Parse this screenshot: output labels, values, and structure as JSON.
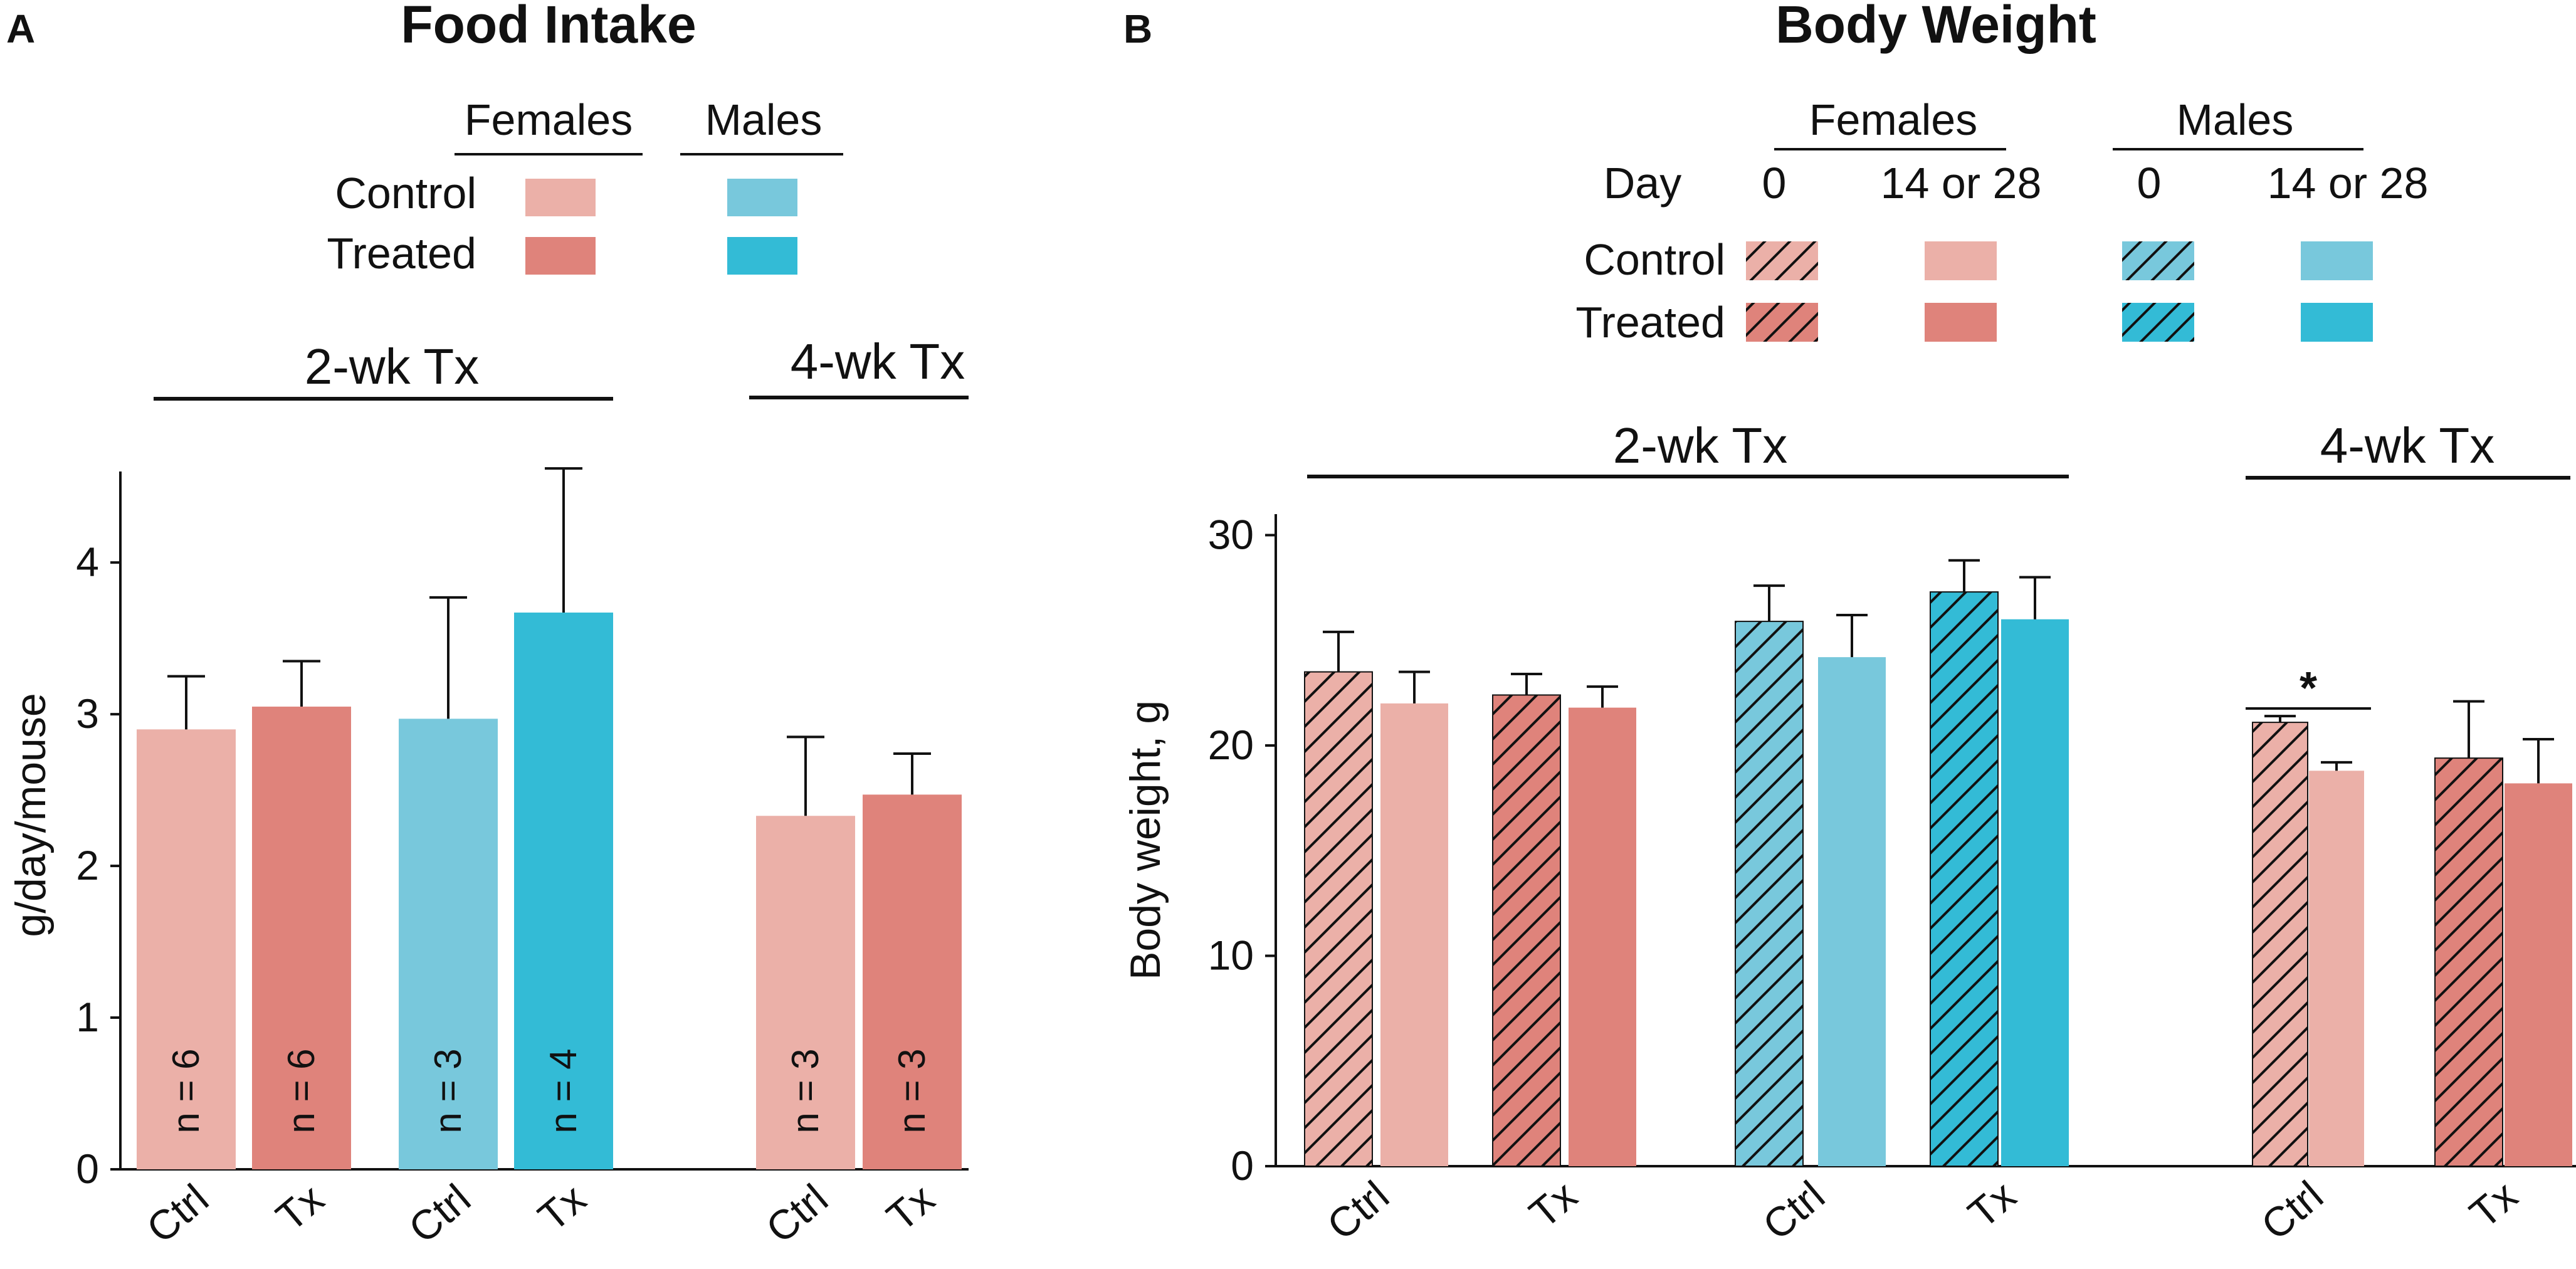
{
  "colors": {
    "female_control": "#ebb0a8",
    "female_treated": "#df837b",
    "male_control": "#78c8dc",
    "male_treated": "#33bbd6",
    "ink": "#111111"
  },
  "panelA": {
    "letter": "A",
    "legend": {
      "females": "Females",
      "males": "Males",
      "control": "Control",
      "treated": "Treated"
    }
  },
  "panelB": {
    "letter": "B",
    "legend": {
      "females": "Females",
      "males": "Males",
      "day_label": "Day",
      "day0": "0",
      "day_end": "14 or 28",
      "control": "Control",
      "treated": "Treated"
    }
  },
  "chart_data": [
    {
      "type": "bar",
      "panel": "A",
      "title": "Food Intake",
      "xlabel": "",
      "ylabel": "g/day/mouse",
      "ylim": [
        0,
        4.6
      ],
      "yticks": [
        "0",
        "1",
        "2",
        "3",
        "4"
      ],
      "group_labels": [
        "2-wk Tx",
        "4-wk Tx"
      ],
      "categories": [
        "Ctrl",
        "Tx",
        "Ctrl",
        "Tx",
        "Ctrl",
        "Tx"
      ],
      "bars": [
        {
          "label": "Ctrl",
          "sex": "female",
          "treatment": "control",
          "value": 2.9,
          "error": 0.35,
          "n": "n = 6",
          "group": "2-wk Tx"
        },
        {
          "label": "Tx",
          "sex": "female",
          "treatment": "treated",
          "value": 3.05,
          "error": 0.3,
          "n": "n = 6",
          "group": "2-wk Tx"
        },
        {
          "label": "Ctrl",
          "sex": "male",
          "treatment": "control",
          "value": 2.97,
          "error": 0.8,
          "n": "n = 3",
          "group": "2-wk Tx"
        },
        {
          "label": "Tx",
          "sex": "male",
          "treatment": "treated",
          "value": 3.67,
          "error": 0.95,
          "n": "n = 4",
          "group": "2-wk Tx"
        },
        {
          "label": "Ctrl",
          "sex": "female",
          "treatment": "control",
          "value": 2.33,
          "error": 0.52,
          "n": "n = 3",
          "group": "4-wk Tx"
        },
        {
          "label": "Tx",
          "sex": "female",
          "treatment": "treated",
          "value": 2.47,
          "error": 0.27,
          "n": "n = 3",
          "group": "4-wk Tx"
        }
      ]
    },
    {
      "type": "bar",
      "panel": "B",
      "title": "Body Weight",
      "xlabel": "",
      "ylabel": "Body weight, g",
      "ylim": [
        0,
        31
      ],
      "yticks": [
        "0",
        "10",
        "20",
        "30"
      ],
      "group_labels": [
        "2-wk Tx",
        "4-wk Tx"
      ],
      "categories": [
        "Ctrl",
        "Tx",
        "Ctrl",
        "Tx",
        "Ctrl",
        "Tx"
      ],
      "significance": "*",
      "bars": [
        {
          "sex": "female",
          "treatment": "control",
          "day": "0",
          "value": 23.5,
          "error": 1.9,
          "group": "2-wk Tx"
        },
        {
          "sex": "female",
          "treatment": "control",
          "day": "14 or 28",
          "value": 22.0,
          "error": 1.5,
          "group": "2-wk Tx"
        },
        {
          "sex": "female",
          "treatment": "treated",
          "day": "0",
          "value": 22.4,
          "error": 1.0,
          "group": "2-wk Tx"
        },
        {
          "sex": "female",
          "treatment": "treated",
          "day": "14 or 28",
          "value": 21.8,
          "error": 1.0,
          "group": "2-wk Tx"
        },
        {
          "sex": "male",
          "treatment": "control",
          "day": "0",
          "value": 25.9,
          "error": 1.7,
          "group": "2-wk Tx"
        },
        {
          "sex": "male",
          "treatment": "control",
          "day": "14 or 28",
          "value": 24.2,
          "error": 2.0,
          "group": "2-wk Tx"
        },
        {
          "sex": "male",
          "treatment": "treated",
          "day": "0",
          "value": 27.3,
          "error": 1.5,
          "group": "2-wk Tx"
        },
        {
          "sex": "male",
          "treatment": "treated",
          "day": "14 or 28",
          "value": 26.0,
          "error": 2.0,
          "group": "2-wk Tx"
        },
        {
          "sex": "female",
          "treatment": "control",
          "day": "0",
          "value": 21.1,
          "error": 0.3,
          "group": "4-wk Tx"
        },
        {
          "sex": "female",
          "treatment": "control",
          "day": "14 or 28",
          "value": 18.8,
          "error": 0.4,
          "group": "4-wk Tx"
        },
        {
          "sex": "female",
          "treatment": "treated",
          "day": "0",
          "value": 19.4,
          "error": 2.7,
          "group": "4-wk Tx"
        },
        {
          "sex": "female",
          "treatment": "treated",
          "day": "14 or 28",
          "value": 18.2,
          "error": 2.1,
          "group": "4-wk Tx"
        }
      ]
    }
  ]
}
